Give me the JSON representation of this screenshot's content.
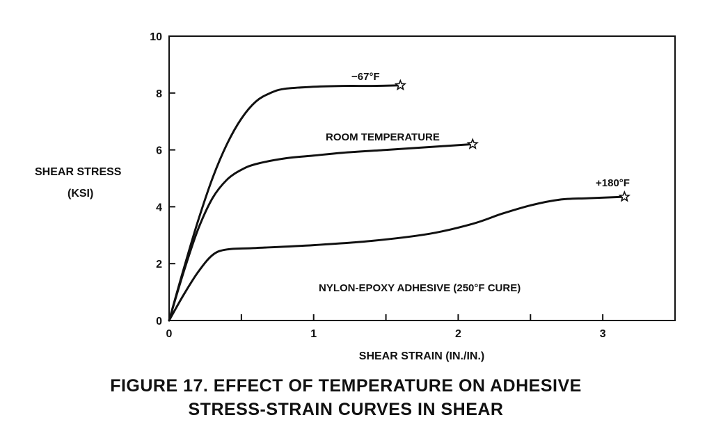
{
  "chart_data": {
    "type": "line",
    "xlabel": "SHEAR STRAIN (IN./IN.)",
    "ylabel": [
      "SHEAR STRESS",
      "(KSI)"
    ],
    "xlim": [
      0,
      3.5
    ],
    "ylim": [
      0,
      10
    ],
    "x_ticks": [
      0,
      1,
      2,
      3
    ],
    "x_minor_ticks": [
      0.5,
      1.5,
      2.5
    ],
    "y_ticks": [
      0,
      2,
      4,
      6,
      8,
      10
    ],
    "grid": false,
    "series": [
      {
        "name": "−67°F",
        "end_marker": "star",
        "points": [
          [
            0,
            0
          ],
          [
            0.1,
            1.8
          ],
          [
            0.2,
            3.5
          ],
          [
            0.3,
            5.0
          ],
          [
            0.4,
            6.2
          ],
          [
            0.5,
            7.1
          ],
          [
            0.6,
            7.7
          ],
          [
            0.7,
            8.0
          ],
          [
            0.8,
            8.15
          ],
          [
            1.0,
            8.22
          ],
          [
            1.2,
            8.25
          ],
          [
            1.4,
            8.25
          ],
          [
            1.6,
            8.27
          ]
        ]
      },
      {
        "name": "ROOM TEMPERATURE",
        "end_marker": "star",
        "points": [
          [
            0,
            0
          ],
          [
            0.1,
            1.7
          ],
          [
            0.2,
            3.2
          ],
          [
            0.3,
            4.3
          ],
          [
            0.4,
            4.95
          ],
          [
            0.5,
            5.3
          ],
          [
            0.6,
            5.5
          ],
          [
            0.8,
            5.7
          ],
          [
            1.0,
            5.8
          ],
          [
            1.2,
            5.9
          ],
          [
            1.5,
            6.0
          ],
          [
            1.8,
            6.1
          ],
          [
            2.1,
            6.2
          ]
        ]
      },
      {
        "name": "+180°F",
        "end_marker": "star",
        "points": [
          [
            0,
            0
          ],
          [
            0.1,
            0.9
          ],
          [
            0.2,
            1.7
          ],
          [
            0.3,
            2.3
          ],
          [
            0.4,
            2.5
          ],
          [
            0.6,
            2.55
          ],
          [
            1.0,
            2.65
          ],
          [
            1.4,
            2.8
          ],
          [
            1.8,
            3.05
          ],
          [
            2.1,
            3.4
          ],
          [
            2.3,
            3.75
          ],
          [
            2.5,
            4.05
          ],
          [
            2.7,
            4.25
          ],
          [
            2.9,
            4.3
          ],
          [
            3.15,
            4.35
          ]
        ]
      }
    ],
    "annotations": {
      "neg67": "−67°F",
      "room": "ROOM TEMPERATURE",
      "plus180": "+180°F",
      "adhesive": "NYLON-EPOXY ADHESIVE (250°F CURE)"
    }
  },
  "caption": {
    "line1": "FIGURE 17.  EFFECT OF TEMPERATURE ON ADHESIVE",
    "line2": "STRESS-STRAIN CURVES IN SHEAR"
  }
}
